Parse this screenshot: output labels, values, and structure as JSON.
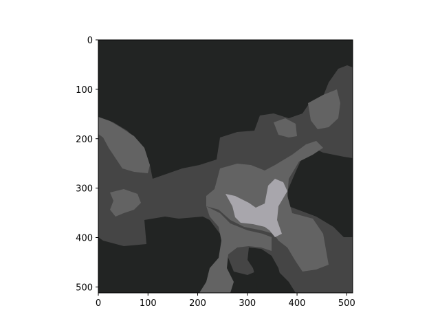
{
  "image_plot": {
    "x_ticks": [
      {
        "value": 0,
        "label": "0"
      },
      {
        "value": 100,
        "label": "100"
      },
      {
        "value": 200,
        "label": "200"
      },
      {
        "value": 300,
        "label": "300"
      },
      {
        "value": 400,
        "label": "400"
      },
      {
        "value": 500,
        "label": "500"
      }
    ],
    "y_ticks": [
      {
        "value": 0,
        "label": "0"
      },
      {
        "value": 100,
        "label": "100"
      },
      {
        "value": 200,
        "label": "200"
      },
      {
        "value": 300,
        "label": "300"
      },
      {
        "value": 400,
        "label": "400"
      },
      {
        "value": 500,
        "label": "500"
      }
    ],
    "x_range": [
      0,
      512
    ],
    "y_range": [
      0,
      512
    ],
    "y_axis_inverted": true,
    "colors": {
      "background_dark": "#222423",
      "mid_gray": "#454545",
      "light_gray": "#636363",
      "highlight": "#a8a6ac",
      "axis": "#000000"
    }
  }
}
